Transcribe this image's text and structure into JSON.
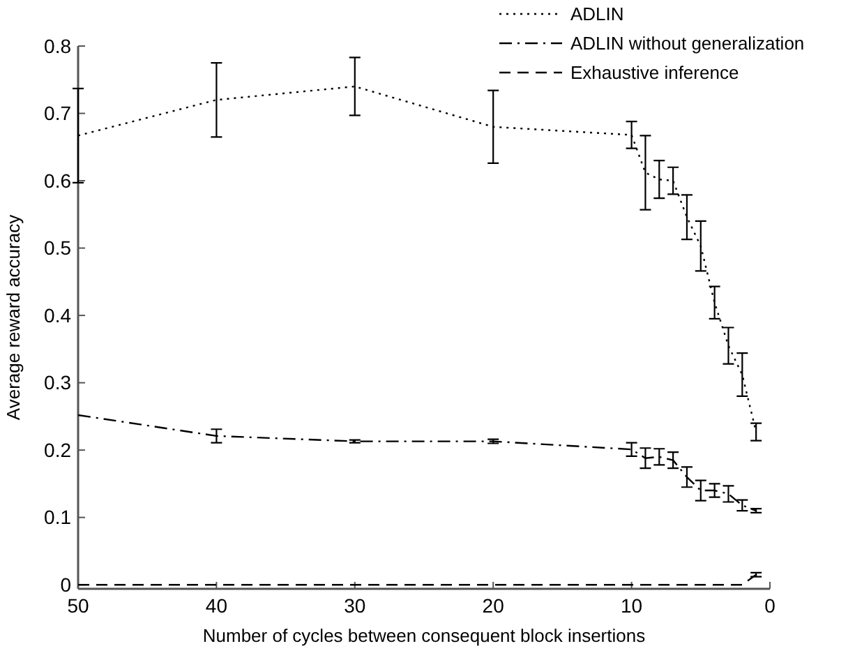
{
  "chart_data": {
    "type": "line",
    "xlabel": "Number of cycles between consequent block insertions",
    "ylabel": "Average reward accuracy",
    "x": [
      50,
      40,
      30,
      20,
      10,
      9,
      8,
      7,
      6,
      5,
      4,
      3,
      2,
      1
    ],
    "xlim": [
      50,
      0
    ],
    "xticks": [
      50,
      40,
      30,
      20,
      10,
      0
    ],
    "ylim": [
      -0.006,
      0.8
    ],
    "yticks": [
      0,
      0.1,
      0.2,
      0.3,
      0.4,
      0.5,
      0.6,
      0.7,
      0.8
    ],
    "grid": false,
    "legend": "top right",
    "series": [
      {
        "name": "ADLIN",
        "color": "#000000",
        "line_style": "dotted",
        "values": [
          0.667,
          0.72,
          0.74,
          0.68,
          0.668,
          0.612,
          0.602,
          0.6,
          0.546,
          0.503,
          0.419,
          0.355,
          0.312,
          0.227
        ],
        "errors": [
          0.07,
          0.055,
          0.043,
          0.054,
          0.02,
          0.055,
          0.028,
          0.02,
          0.033,
          0.037,
          0.024,
          0.027,
          0.032,
          0.013
        ]
      },
      {
        "name": "ADLIN without generalization",
        "color": "#000000",
        "line_style": "dashdot",
        "values": [
          0.252,
          0.221,
          0.213,
          0.213,
          0.201,
          0.188,
          0.19,
          0.185,
          0.16,
          0.14,
          0.14,
          0.135,
          0.118,
          0.11
        ],
        "errors": [
          null,
          0.01,
          0.002,
          0.003,
          0.01,
          0.015,
          0.012,
          0.012,
          0.015,
          0.015,
          0.01,
          0.012,
          0.008,
          0.003
        ]
      },
      {
        "name": "Exhaustive inference",
        "color": "#000000",
        "line_style": "dashed",
        "values": [
          0,
          0,
          0,
          0,
          0,
          0,
          0,
          0,
          0,
          0,
          0,
          0,
          0,
          0.015
        ],
        "errors": [
          null,
          null,
          null,
          null,
          null,
          null,
          null,
          null,
          null,
          null,
          null,
          null,
          null,
          0.003
        ]
      }
    ]
  }
}
